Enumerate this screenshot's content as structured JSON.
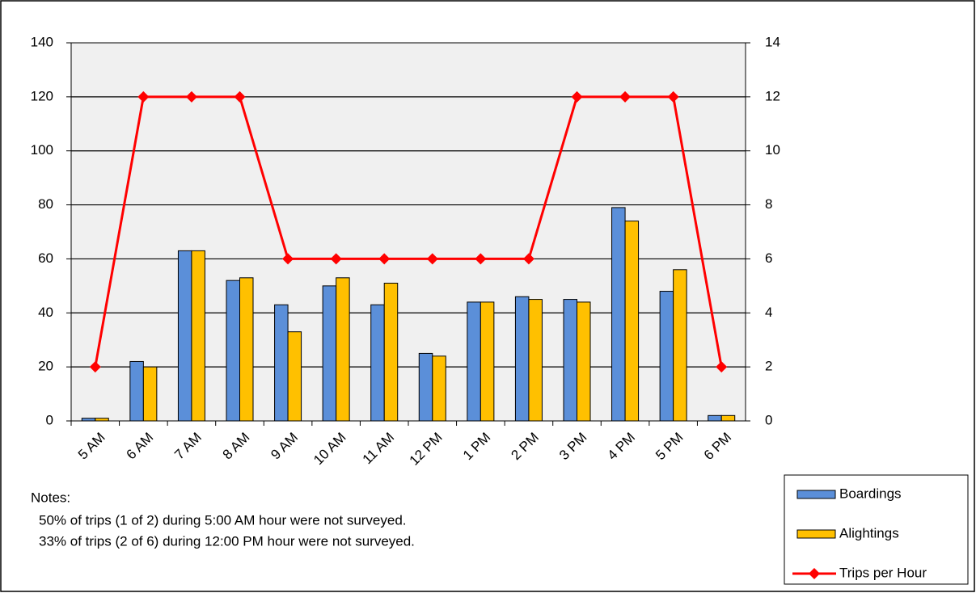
{
  "chart_data": {
    "type": "bar",
    "categories": [
      "5 AM",
      "6 AM",
      "7 AM",
      "8 AM",
      "9 AM",
      "10 AM",
      "11 AM",
      "12 PM",
      "1 PM",
      "2 PM",
      "3 PM",
      "4 PM",
      "5 PM",
      "6 PM"
    ],
    "series": [
      {
        "name": "Boardings",
        "type": "bar",
        "color": "#5b8fd9",
        "values": [
          1,
          22,
          63,
          52,
          43,
          50,
          43,
          25,
          44,
          46,
          45,
          79,
          48,
          2
        ]
      },
      {
        "name": "Alightings",
        "type": "bar",
        "color": "#ffc000",
        "values": [
          1,
          20,
          63,
          53,
          33,
          53,
          51,
          24,
          44,
          45,
          44,
          74,
          56,
          2
        ]
      },
      {
        "name": "Trips per Hour",
        "type": "line",
        "axis": "y2",
        "color": "#ff0000",
        "values": [
          2,
          12,
          12,
          12,
          6,
          6,
          6,
          6,
          6,
          6,
          12,
          12,
          12,
          2
        ]
      }
    ],
    "ylim": [
      0,
      140
    ],
    "yticks": [
      0,
      20,
      40,
      60,
      80,
      100,
      120,
      140
    ],
    "y2lim": [
      0,
      14
    ],
    "y2ticks": [
      0,
      2,
      4,
      6,
      8,
      10,
      12,
      14
    ],
    "grid": true,
    "legend": "bottom-right",
    "notes": {
      "title": "Notes:",
      "lines": [
        "50% of trips (1 of 2) during 5:00 AM hour were not surveyed.",
        "33% of trips (2 of 6) during 12:00 PM hour were not surveyed."
      ]
    }
  }
}
